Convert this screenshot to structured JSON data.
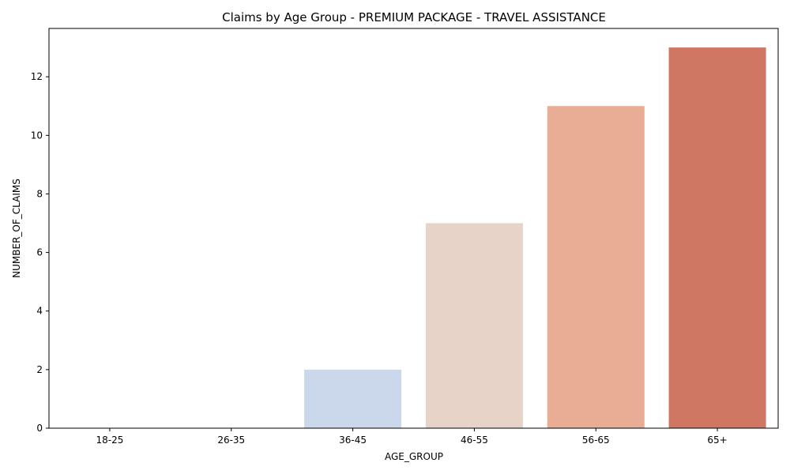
{
  "chart_data": {
    "type": "bar",
    "title": "Claims by Age Group - PREMIUM PACKAGE - TRAVEL ASSISTANCE",
    "xlabel": "AGE_GROUP",
    "ylabel": "NUMBER_OF_CLAIMS",
    "categories": [
      "18-25",
      "26-35",
      "36-45",
      "46-55",
      "56-65",
      "65+"
    ],
    "values": [
      0,
      0,
      2,
      7,
      11,
      13
    ],
    "colors": [
      "#4a6fe3",
      "#8ea6ef",
      "#cbd8eb",
      "#e8d3c9",
      "#e9ad95",
      "#d07764"
    ],
    "ylim": [
      0,
      13.65
    ],
    "yticks": [
      0,
      2,
      4,
      6,
      8,
      10,
      12
    ],
    "grid": false,
    "legend": "none"
  }
}
